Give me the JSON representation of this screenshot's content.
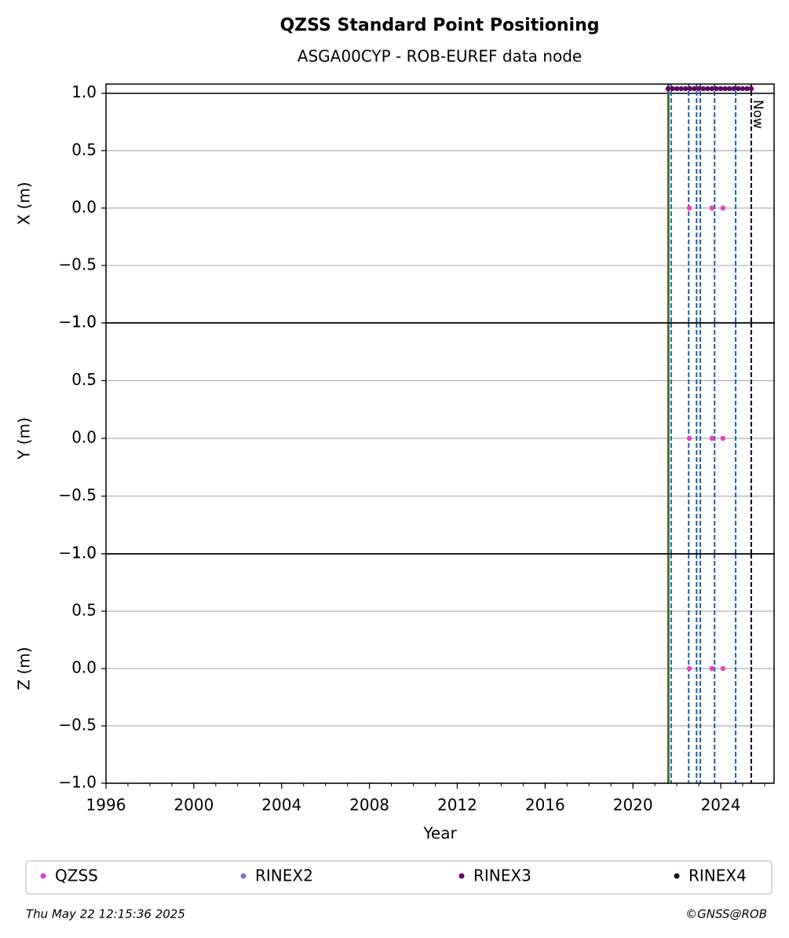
{
  "chart_data": [
    {
      "type": "scatter",
      "title": "QZSS Standard Point Positioning",
      "subtitle": "ASGA00CYP - ROB-EUREF data node",
      "ylabel": "X (m)",
      "xlim": [
        1996,
        2026.43
      ],
      "ylim": [
        -1,
        1.08
      ],
      "yticks": [
        -1,
        -0.5,
        0,
        0.5,
        1
      ],
      "grid": true,
      "reference_line": 1,
      "series": [
        {
          "name": "QZSS",
          "color": "#e23fc2",
          "x": [
            2022.57,
            2023.6,
            2024.1
          ],
          "values": [
            0,
            0,
            0
          ]
        },
        {
          "name": "RINEX2",
          "color": "#7a78c2",
          "x": [],
          "values": []
        },
        {
          "name": "RINEX3",
          "color": "#5f0560",
          "x": [
            2021.6,
            2021.8,
            2022.0,
            2022.2,
            2022.4,
            2022.6,
            2022.8,
            2023.0,
            2023.2,
            2023.4,
            2023.6,
            2023.8,
            2024.0,
            2024.2,
            2024.4,
            2024.6,
            2024.8,
            2025.0,
            2025.2,
            2025.39
          ],
          "values": [
            1.04,
            1.04,
            1.04,
            1.04,
            1.04,
            1.04,
            1.04,
            1.04,
            1.04,
            1.04,
            1.04,
            1.04,
            1.04,
            1.04,
            1.04,
            1.04,
            1.04,
            1.04,
            1.04,
            1.04
          ]
        },
        {
          "name": "RINEX4",
          "color": "#1e0a1e",
          "x": [],
          "values": []
        }
      ],
      "vlines": [
        {
          "x": 2021.6,
          "color": "#d62728",
          "style": "solid"
        },
        {
          "x": 2021.63,
          "color": "#1a7f2a",
          "style": "solid"
        },
        {
          "x": 2021.74,
          "color": "#1f5fa8",
          "style": "dashed"
        },
        {
          "x": 2022.54,
          "color": "#1f5fa8",
          "style": "dashed"
        },
        {
          "x": 2022.9,
          "color": "#1f5fa8",
          "style": "dashed"
        },
        {
          "x": 2023.07,
          "color": "#1f5fa8",
          "style": "dashed"
        },
        {
          "x": 2023.72,
          "color": "#1f5fa8",
          "style": "dashed"
        },
        {
          "x": 2024.68,
          "color": "#1f5fa8",
          "style": "dashed"
        },
        {
          "x": 2025.39,
          "color": "#000000",
          "style": "dashed",
          "label": "Now"
        }
      ]
    },
    {
      "type": "scatter",
      "ylabel": "Y (m)",
      "xlim": [
        1996,
        2026.43
      ],
      "ylim": [
        -1,
        1
      ],
      "yticks": [
        -1,
        -0.5,
        0,
        0.5,
        1
      ],
      "grid": true,
      "series": [
        {
          "name": "QZSS",
          "color": "#e23fc2",
          "x": [
            2022.57,
            2023.6,
            2024.1
          ],
          "values": [
            0,
            0,
            0
          ]
        }
      ]
    },
    {
      "type": "scatter",
      "ylabel": "Z (m)",
      "xlabel": "Year",
      "xlim": [
        1996,
        2026.43
      ],
      "ylim": [
        -1,
        1
      ],
      "yticks": [
        -1,
        -0.5,
        0,
        0.5,
        1
      ],
      "grid": true,
      "xticks": [
        1996,
        2000,
        2004,
        2008,
        2012,
        2016,
        2020,
        2024
      ],
      "series": [
        {
          "name": "QZSS",
          "color": "#e23fc2",
          "x": [
            2022.57,
            2023.6,
            2024.1
          ],
          "values": [
            0,
            0,
            0
          ]
        }
      ]
    }
  ],
  "footer": {
    "left": "Thu May 22 12:15:36 2025",
    "right": "©GNSS@ROB"
  }
}
